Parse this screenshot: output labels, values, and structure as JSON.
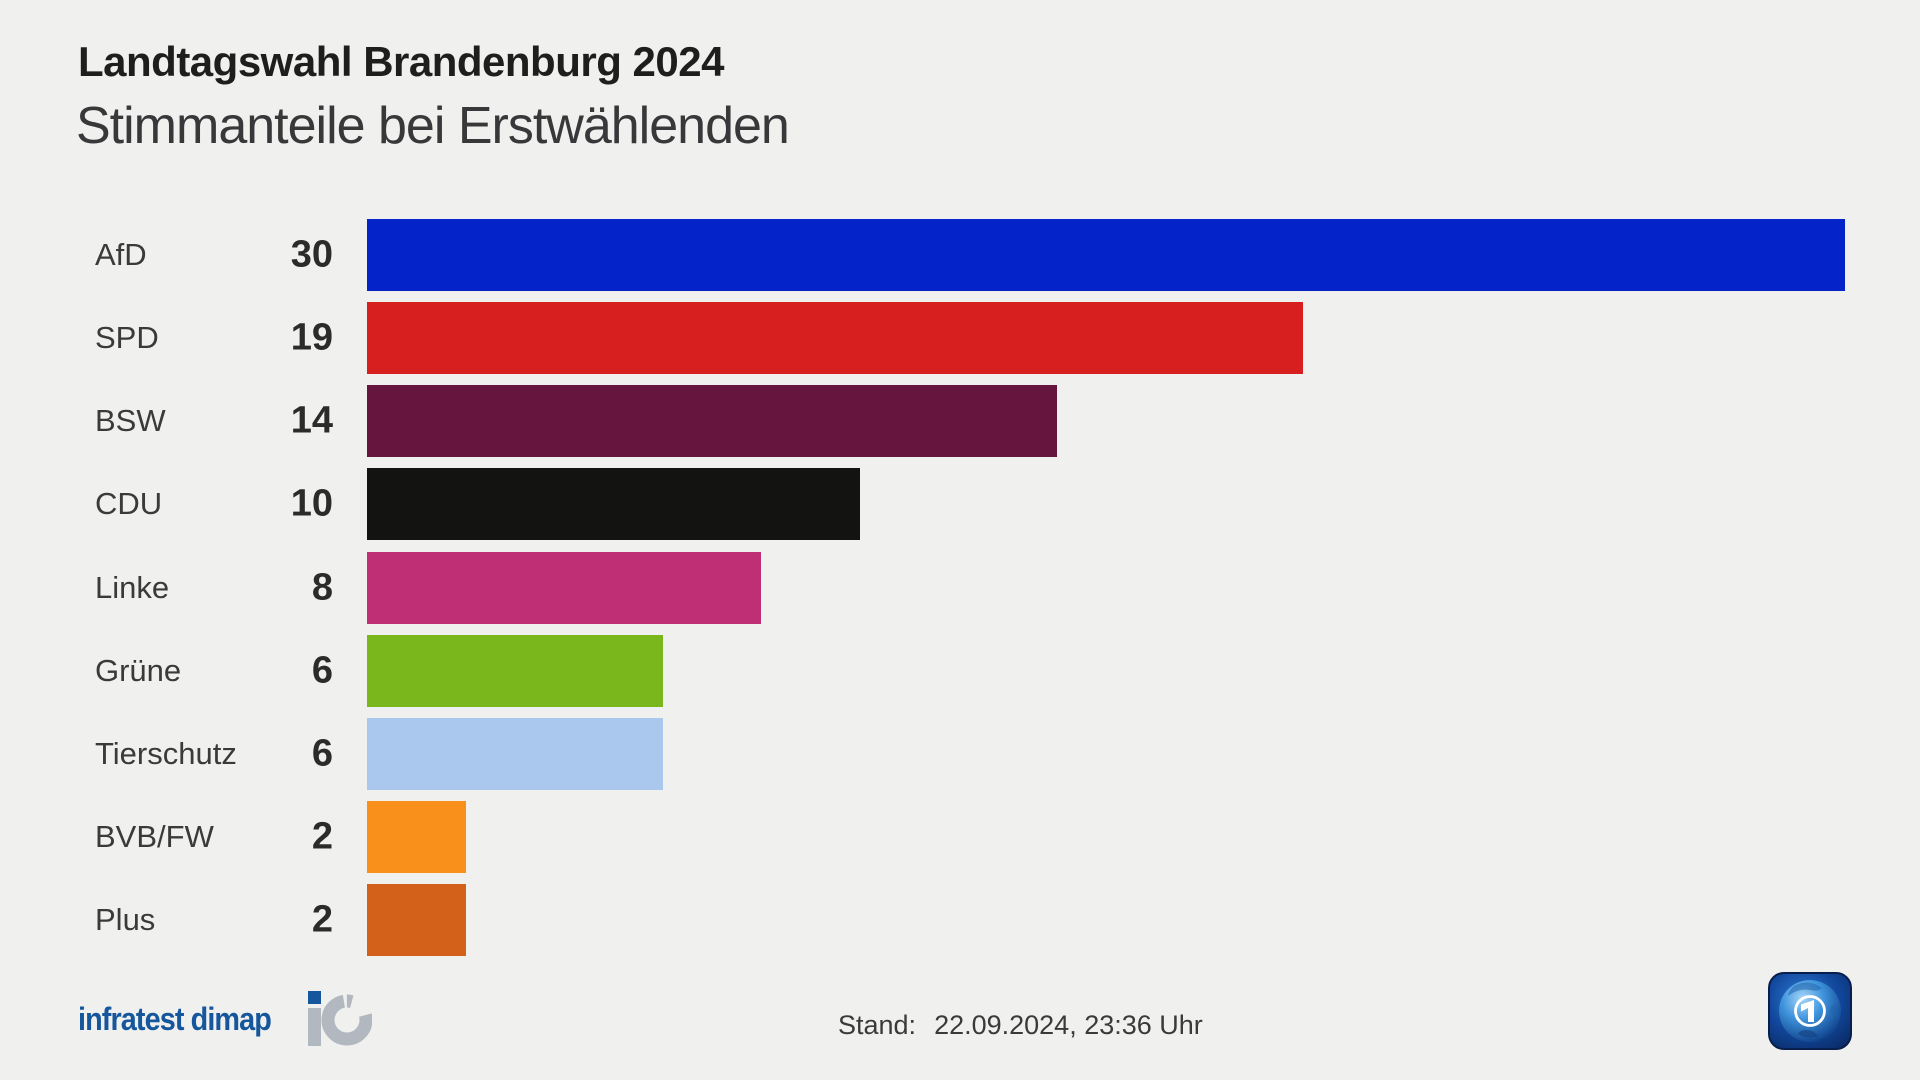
{
  "header": {
    "title": "Landtagswahl Brandenburg 2024",
    "subtitle": "Stimmanteile bei Erstwählenden"
  },
  "chart_data": {
    "type": "bar",
    "orientation": "horizontal",
    "title": "Landtagswahl Brandenburg 2024",
    "subtitle": "Stimmanteile bei Erstwählenden",
    "categories": [
      "AfD",
      "SPD",
      "BSW",
      "CDU",
      "Linke",
      "Grüne",
      "Tierschutz",
      "BVB/FW",
      "Plus"
    ],
    "values": [
      30,
      19,
      14,
      10,
      8,
      6,
      6,
      2,
      2
    ],
    "bar_colors": [
      "#0423c8",
      "#d71f1f",
      "#66153f",
      "#131312",
      "#bf2f76",
      "#7ab71d",
      "#aac7ee",
      "#f8901b",
      "#d3611a"
    ],
    "value_label_position": "left-of-bar",
    "xlim": [
      0,
      30
    ],
    "grid": false,
    "legend": "none",
    "background_color": "#f0f0ee"
  },
  "footer": {
    "source_text": "infratest dimap",
    "stand_label": "Stand:",
    "stand_value": "22.09.2024, 23:36 Uhr"
  },
  "branding": {
    "infratest_blue": "#15569c",
    "infratest_gray": "#b2b8bf",
    "ard_logo_name": "tagesschau-globe-logo"
  }
}
